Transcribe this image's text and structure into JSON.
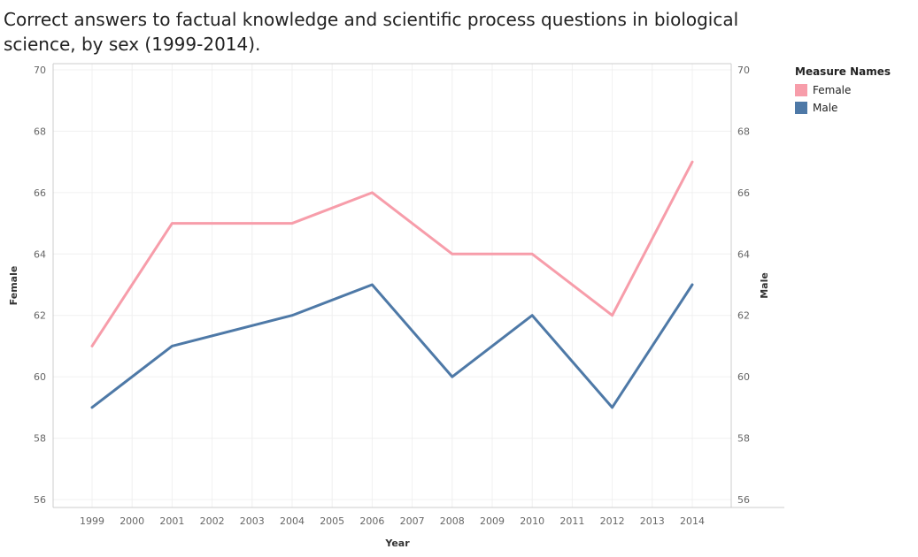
{
  "title": "Correct answers to factual knowledge and scientific process questions in  biological science, by sex (1999-2014).",
  "legend": {
    "title": "Measure Names",
    "items": [
      {
        "label": "Female",
        "color": "#f79daa"
      },
      {
        "label": "Male",
        "color": "#4e79a7"
      }
    ]
  },
  "chart_data": {
    "type": "line",
    "xlabel": "Year",
    "ylabel_left": "Female",
    "ylabel_right": "Male",
    "ylim": [
      56,
      70
    ],
    "y_ticks": [
      56,
      58,
      60,
      62,
      64,
      66,
      68,
      70
    ],
    "x": [
      1999,
      2000,
      2001,
      2002,
      2003,
      2004,
      2005,
      2006,
      2007,
      2008,
      2009,
      2010,
      2011,
      2012,
      2013,
      2014
    ],
    "grid": true,
    "legend_position": "top-right",
    "series": [
      {
        "name": "Female",
        "color": "#f79daa",
        "points": [
          [
            1999,
            61
          ],
          [
            2001,
            65
          ],
          [
            2004,
            65
          ],
          [
            2006,
            66
          ],
          [
            2008,
            64
          ],
          [
            2010,
            64
          ],
          [
            2012,
            62
          ],
          [
            2014,
            67
          ]
        ]
      },
      {
        "name": "Male",
        "color": "#4e79a7",
        "points": [
          [
            1999,
            59
          ],
          [
            2001,
            61
          ],
          [
            2004,
            62
          ],
          [
            2006,
            63
          ],
          [
            2008,
            60
          ],
          [
            2010,
            62
          ],
          [
            2012,
            59
          ],
          [
            2014,
            63
          ]
        ]
      }
    ]
  }
}
